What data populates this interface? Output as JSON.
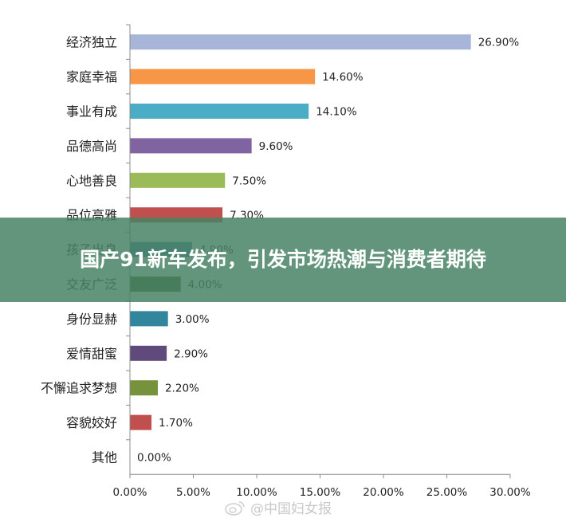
{
  "chart_data": {
    "type": "bar",
    "orientation": "horizontal",
    "categories": [
      "经济独立",
      "家庭幸福",
      "事业有成",
      "品德高尚",
      "心地善良",
      "品位高雅",
      "孩子出息",
      "交友广泛",
      "身份显赫",
      "爱情甜蜜",
      "不懈追求梦想",
      "容貌姣好",
      "其他"
    ],
    "values": [
      26.9,
      14.6,
      14.1,
      9.6,
      7.5,
      7.3,
      4.9,
      4.0,
      3.0,
      2.9,
      2.2,
      1.7,
      0.0
    ],
    "value_labels": [
      "26.90%",
      "14.60%",
      "14.10%",
      "9.60%",
      "7.50%",
      "7.30%",
      "4.90%",
      "4.00%",
      "3.00%",
      "2.90%",
      "2.20%",
      "1.70%",
      "0.00%"
    ],
    "colors": [
      "#a6b5d8",
      "#f79646",
      "#4bacc6",
      "#8064a2",
      "#9bbb59",
      "#c0504d",
      "#4a7ebb",
      "#4f6228",
      "#31859c",
      "#604a7b",
      "#76923c",
      "#c0504d",
      "#4f81bd"
    ],
    "xlim": [
      0,
      30
    ],
    "xticks": [
      "0.00%",
      "5.00%",
      "10.00%",
      "15.00%",
      "20.00%",
      "25.00%",
      "30.00%"
    ],
    "grid": false,
    "legend": "none",
    "title": "",
    "xlabel": "",
    "ylabel": ""
  },
  "overlay": {
    "headline": "国产91新车发布，引发市场热潮与消费者期待"
  },
  "watermark": {
    "text": "@中国妇女报",
    "icon": "weibo-icon"
  }
}
